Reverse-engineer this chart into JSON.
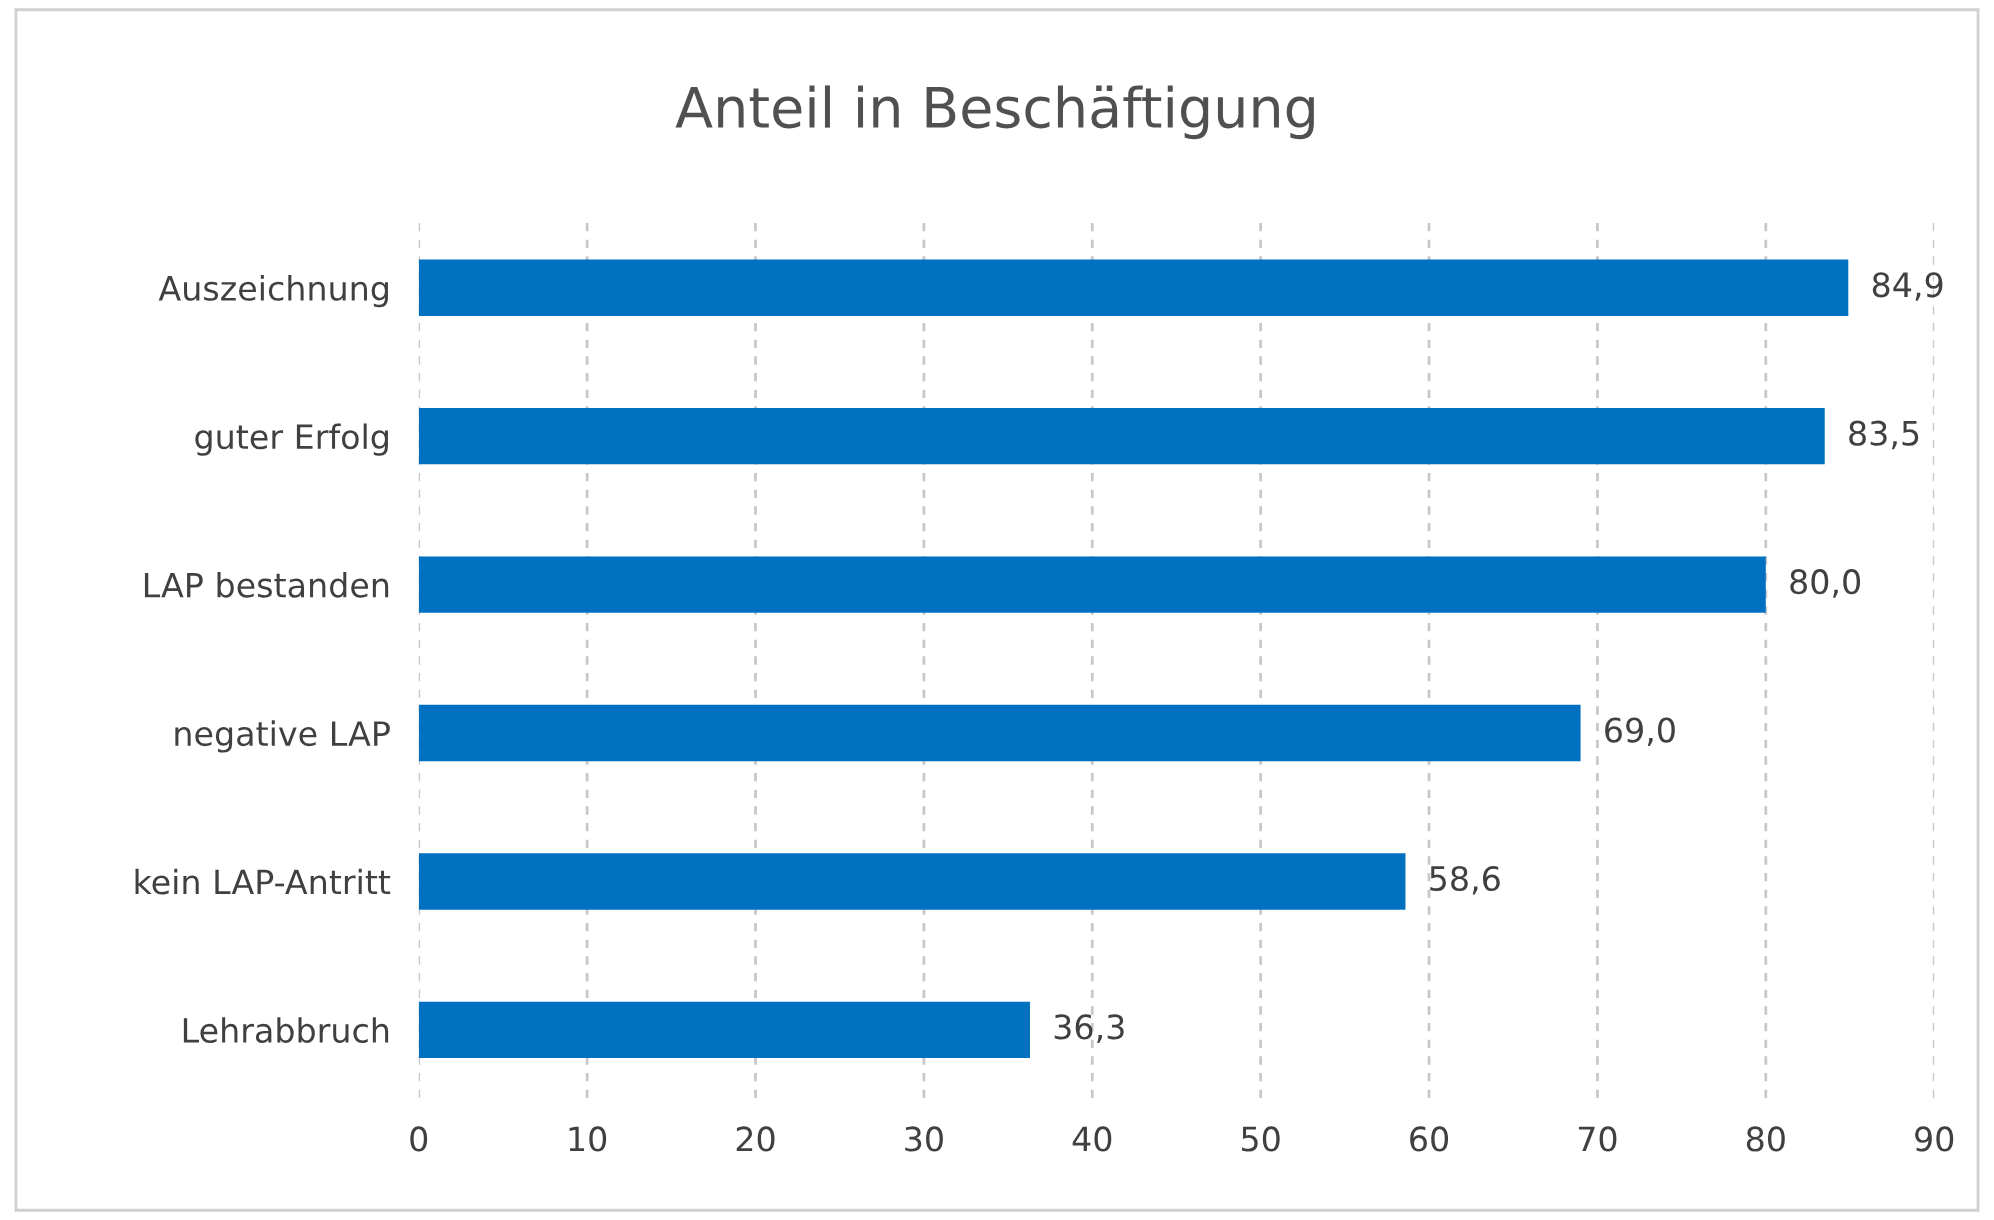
{
  "chart_data": {
    "type": "bar",
    "orientation": "horizontal",
    "title": "Anteil in Beschäftigung",
    "categories": [
      "Auszeichnung",
      "guter Erfolg",
      "LAP bestanden",
      "negative LAP",
      "kein LAP-Antritt",
      "Lehrabbruch"
    ],
    "values": [
      84.9,
      83.5,
      80.0,
      69.0,
      58.6,
      36.3
    ],
    "value_labels": [
      "84,9",
      "83,5",
      "80,0",
      "69,0",
      "58,6",
      "36,3"
    ],
    "color": "#0070c0",
    "xlim": [
      0,
      90
    ],
    "xticks": [
      0,
      10,
      20,
      30,
      40,
      50,
      60,
      70,
      80,
      90
    ],
    "grid": "x",
    "legend": false
  }
}
